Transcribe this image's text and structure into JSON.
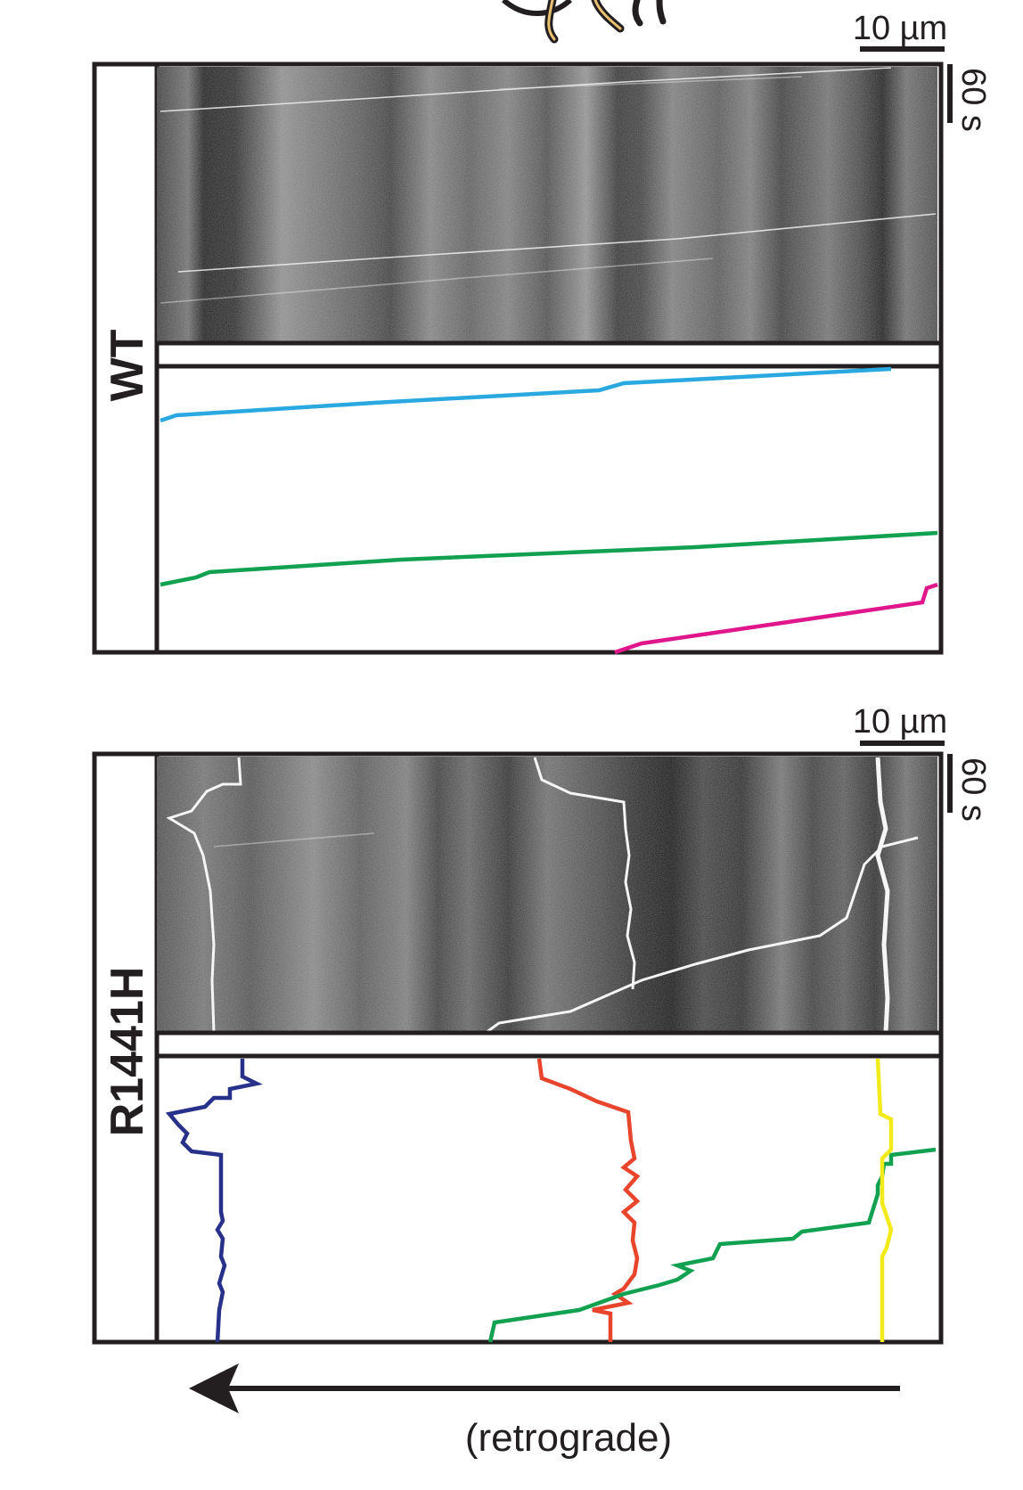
{
  "panels": [
    {
      "id": "wt",
      "label": "WT",
      "scale_x_label": "10 µm",
      "scale_t_label": "60 s",
      "tracks": [
        {
          "name": "track-blue",
          "color": "#29a9e0"
        },
        {
          "name": "track-green",
          "color": "#12a150"
        },
        {
          "name": "track-magenta",
          "color": "#e0168c"
        }
      ],
      "kymo": {
        "bright_lines": 4,
        "static_tracks": 0
      }
    },
    {
      "id": "r1441h",
      "label": "R1441H",
      "scale_x_label": "10 µm",
      "scale_t_label": "60 s",
      "tracks": [
        {
          "name": "track-navy",
          "color": "#28318a"
        },
        {
          "name": "track-red",
          "color": "#e8452c"
        },
        {
          "name": "track-green",
          "color": "#12a150"
        },
        {
          "name": "track-yellow",
          "color": "#f2ea19"
        }
      ],
      "kymo": {
        "bright_lines": 1,
        "static_tracks": 3
      }
    }
  ],
  "direction": {
    "text": "(retrograde)",
    "arrow": "left-arrow"
  }
}
